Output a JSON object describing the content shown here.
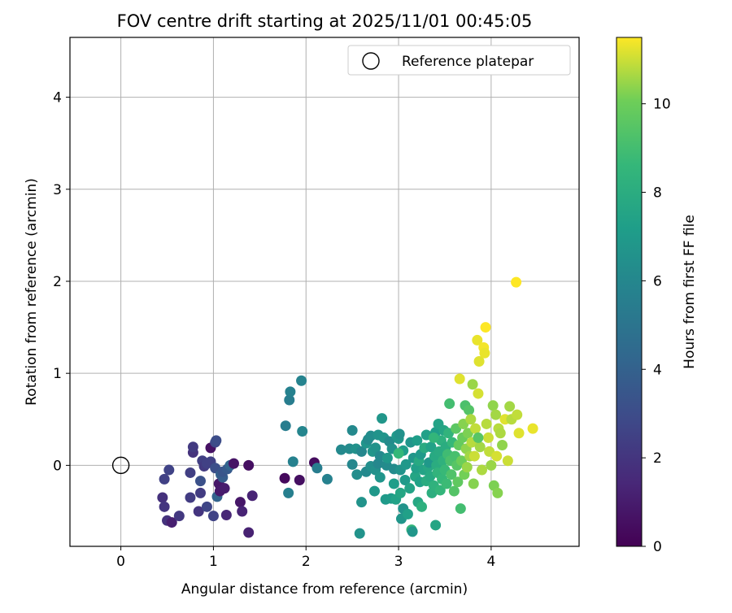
{
  "chart_data": {
    "type": "scatter",
    "title": "FOV centre drift starting at 2025/11/01 00:45:05",
    "xlabel": "Angular distance from reference (arcmin)",
    "ylabel": "Rotation from reference (arcmin)",
    "xlim": [
      -0.55,
      4.95
    ],
    "ylim": [
      -0.88,
      4.65
    ],
    "xticks": [
      0,
      1,
      2,
      3,
      4
    ],
    "yticks": [
      0,
      1,
      2,
      3,
      4
    ],
    "grid": true,
    "legend": {
      "placement": "top-right",
      "entries": [
        "Reference platepar"
      ]
    },
    "reference_point": {
      "x": 0,
      "y": 0
    },
    "colorbar": {
      "label": "Hours from first FF file",
      "colormap": "viridis",
      "range": [
        0,
        11.5
      ],
      "ticks": [
        0,
        2,
        4,
        6,
        8,
        10
      ]
    },
    "points": [
      {
        "x": 0.45,
        "y": -0.35,
        "t": 1.8
      },
      {
        "x": 0.47,
        "y": -0.15,
        "t": 2.5
      },
      {
        "x": 0.47,
        "y": -0.45,
        "t": 2.0
      },
      {
        "x": 0.5,
        "y": -0.6,
        "t": 1.9
      },
      {
        "x": 0.52,
        "y": -0.05,
        "t": 2.6
      },
      {
        "x": 0.55,
        "y": -0.62,
        "t": 1.1
      },
      {
        "x": 0.63,
        "y": -0.55,
        "t": 2.1
      },
      {
        "x": 0.75,
        "y": -0.35,
        "t": 2.3
      },
      {
        "x": 0.75,
        "y": -0.08,
        "t": 2.4
      },
      {
        "x": 0.78,
        "y": 0.14,
        "t": 1.9
      },
      {
        "x": 0.78,
        "y": 0.2,
        "t": 2.2
      },
      {
        "x": 0.84,
        "y": -0.5,
        "t": 2.0
      },
      {
        "x": 0.86,
        "y": -0.3,
        "t": 2.3
      },
      {
        "x": 0.86,
        "y": -0.17,
        "t": 3.2
      },
      {
        "x": 0.88,
        "y": 0.05,
        "t": 2.4
      },
      {
        "x": 0.9,
        "y": -0.01,
        "t": 2.2
      },
      {
        "x": 0.93,
        "y": 0.02,
        "t": 2.5
      },
      {
        "x": 0.93,
        "y": -0.45,
        "t": 2.7
      },
      {
        "x": 0.97,
        "y": 0.19,
        "t": 0.6
      },
      {
        "x": 0.97,
        "y": 0.04,
        "t": 2.5
      },
      {
        "x": 1.0,
        "y": -0.55,
        "t": 2.6
      },
      {
        "x": 1.02,
        "y": -0.03,
        "t": 3.1
      },
      {
        "x": 1.02,
        "y": 0.25,
        "t": 2.8
      },
      {
        "x": 1.03,
        "y": 0.27,
        "t": 3.0
      },
      {
        "x": 1.04,
        "y": -0.34,
        "t": 4.1
      },
      {
        "x": 1.06,
        "y": -0.2,
        "t": 0.8
      },
      {
        "x": 1.07,
        "y": -0.28,
        "t": 0.9
      },
      {
        "x": 1.08,
        "y": -0.1,
        "t": 4.0
      },
      {
        "x": 1.1,
        "y": -0.13,
        "t": 3.8
      },
      {
        "x": 1.1,
        "y": -0.07,
        "t": 3.4
      },
      {
        "x": 1.12,
        "y": -0.25,
        "t": 1.0
      },
      {
        "x": 1.14,
        "y": -0.54,
        "t": 1.4
      },
      {
        "x": 1.15,
        "y": -0.04,
        "t": 3.6
      },
      {
        "x": 1.18,
        "y": 0.0,
        "t": 4.2
      },
      {
        "x": 1.22,
        "y": 0.02,
        "t": 0.7
      },
      {
        "x": 1.29,
        "y": -0.4,
        "t": 0.8
      },
      {
        "x": 1.31,
        "y": -0.5,
        "t": 1.3
      },
      {
        "x": 1.38,
        "y": 0.0,
        "t": 0.5
      },
      {
        "x": 1.38,
        "y": -0.73,
        "t": 1.2
      },
      {
        "x": 1.42,
        "y": -0.33,
        "t": 1.3
      },
      {
        "x": 1.77,
        "y": -0.14,
        "t": 0.3
      },
      {
        "x": 1.78,
        "y": 0.43,
        "t": 5.5
      },
      {
        "x": 1.81,
        "y": -0.3,
        "t": 5.6
      },
      {
        "x": 1.82,
        "y": 0.71,
        "t": 5.5
      },
      {
        "x": 1.83,
        "y": 0.8,
        "t": 5.7
      },
      {
        "x": 1.86,
        "y": 0.04,
        "t": 5.7
      },
      {
        "x": 1.93,
        "y": -0.16,
        "t": 0.5
      },
      {
        "x": 1.95,
        "y": 0.92,
        "t": 5.8
      },
      {
        "x": 1.96,
        "y": 0.37,
        "t": 5.9
      },
      {
        "x": 2.09,
        "y": 0.03,
        "t": 0.4
      },
      {
        "x": 2.12,
        "y": -0.03,
        "t": 5.5
      },
      {
        "x": 2.23,
        "y": -0.15,
        "t": 5.7
      },
      {
        "x": 2.38,
        "y": 0.17,
        "t": 6.1
      },
      {
        "x": 2.47,
        "y": 0.18,
        "t": 6.2
      },
      {
        "x": 2.5,
        "y": 0.01,
        "t": 6.0
      },
      {
        "x": 2.5,
        "y": 0.38,
        "t": 6.1
      },
      {
        "x": 2.54,
        "y": 0.18,
        "t": 6.5
      },
      {
        "x": 2.55,
        "y": -0.1,
        "t": 6.3
      },
      {
        "x": 2.58,
        "y": -0.74,
        "t": 6.6
      },
      {
        "x": 2.6,
        "y": -0.4,
        "t": 6.6
      },
      {
        "x": 2.6,
        "y": 0.15,
        "t": 6.0
      },
      {
        "x": 2.65,
        "y": 0.24,
        "t": 6.7
      },
      {
        "x": 2.65,
        "y": -0.07,
        "t": 6.1
      },
      {
        "x": 2.67,
        "y": 0.28,
        "t": 6.2
      },
      {
        "x": 2.7,
        "y": 0.32,
        "t": 6.3
      },
      {
        "x": 2.7,
        "y": -0.01,
        "t": 6.4
      },
      {
        "x": 2.72,
        "y": 0.15,
        "t": 6.8
      },
      {
        "x": 2.74,
        "y": -0.28,
        "t": 6.9
      },
      {
        "x": 2.75,
        "y": 0.19,
        "t": 6.6
      },
      {
        "x": 2.75,
        "y": -0.05,
        "t": 6.5
      },
      {
        "x": 2.78,
        "y": 0.33,
        "t": 6.6
      },
      {
        "x": 2.78,
        "y": 0.02,
        "t": 6.0
      },
      {
        "x": 2.8,
        "y": -0.13,
        "t": 6.7
      },
      {
        "x": 2.8,
        "y": 0.1,
        "t": 6.1
      },
      {
        "x": 2.82,
        "y": 0.51,
        "t": 6.8
      },
      {
        "x": 2.84,
        "y": 0.3,
        "t": 6.7
      },
      {
        "x": 2.86,
        "y": -0.37,
        "t": 7.0
      },
      {
        "x": 2.87,
        "y": 0.0,
        "t": 6.2
      },
      {
        "x": 2.88,
        "y": 0.08,
        "t": 6.9
      },
      {
        "x": 2.9,
        "y": 0.26,
        "t": 6.2
      },
      {
        "x": 2.92,
        "y": -0.36,
        "t": 7.1
      },
      {
        "x": 2.93,
        "y": 0.18,
        "t": 6.5
      },
      {
        "x": 2.95,
        "y": -0.04,
        "t": 6.2
      },
      {
        "x": 2.95,
        "y": -0.2,
        "t": 7.2
      },
      {
        "x": 2.97,
        "y": -0.37,
        "t": 7.4
      },
      {
        "x": 2.98,
        "y": 0.32,
        "t": 7.0
      },
      {
        "x": 3.0,
        "y": 0.29,
        "t": 6.8
      },
      {
        "x": 3.01,
        "y": 0.34,
        "t": 6.5
      },
      {
        "x": 3.02,
        "y": -0.05,
        "t": 6.6
      },
      {
        "x": 3.02,
        "y": -0.3,
        "t": 7.6
      },
      {
        "x": 3.03,
        "y": -0.58,
        "t": 6.8
      },
      {
        "x": 3.05,
        "y": 0.16,
        "t": 7.2
      },
      {
        "x": 3.05,
        "y": -0.47,
        "t": 6.6
      },
      {
        "x": 3.07,
        "y": -0.16,
        "t": 7.0
      },
      {
        "x": 3.08,
        "y": 0.01,
        "t": 6.9
      },
      {
        "x": 3.1,
        "y": -0.53,
        "t": 7.3
      },
      {
        "x": 3.12,
        "y": -0.25,
        "t": 7.5
      },
      {
        "x": 3.13,
        "y": 0.25,
        "t": 6.7
      },
      {
        "x": 3.14,
        "y": -0.7,
        "t": 8.5
      },
      {
        "x": 3.15,
        "y": -0.72,
        "t": 6.8
      },
      {
        "x": 3.16,
        "y": 0.08,
        "t": 6.8
      },
      {
        "x": 3.18,
        "y": -0.12,
        "t": 7.6
      },
      {
        "x": 3.19,
        "y": -0.03,
        "t": 7.3
      },
      {
        "x": 3.2,
        "y": 0.27,
        "t": 7.2
      },
      {
        "x": 3.21,
        "y": -0.4,
        "t": 7.7
      },
      {
        "x": 3.22,
        "y": 0.05,
        "t": 7.8
      },
      {
        "x": 3.23,
        "y": -0.18,
        "t": 7.4
      },
      {
        "x": 3.24,
        "y": 0.12,
        "t": 7.0
      },
      {
        "x": 3.25,
        "y": -0.45,
        "t": 8.2
      },
      {
        "x": 3.27,
        "y": -0.05,
        "t": 7.5
      },
      {
        "x": 3.28,
        "y": 0.19,
        "t": 7.9
      },
      {
        "x": 3.3,
        "y": -0.17,
        "t": 8.0
      },
      {
        "x": 3.3,
        "y": 0.33,
        "t": 7.3
      },
      {
        "x": 3.32,
        "y": -0.02,
        "t": 7.7
      },
      {
        "x": 3.33,
        "y": 0.03,
        "t": 6.9
      },
      {
        "x": 3.34,
        "y": -0.12,
        "t": 7.8
      },
      {
        "x": 3.35,
        "y": 0.2,
        "t": 7.4
      },
      {
        "x": 3.36,
        "y": -0.3,
        "t": 8.1
      },
      {
        "x": 3.38,
        "y": -0.22,
        "t": 8.3
      },
      {
        "x": 3.39,
        "y": 0.1,
        "t": 7.8
      },
      {
        "x": 3.4,
        "y": 0.36,
        "t": 7.2
      },
      {
        "x": 3.4,
        "y": -0.65,
        "t": 7.6
      },
      {
        "x": 3.41,
        "y": 0.0,
        "t": 8.0
      },
      {
        "x": 3.42,
        "y": -0.08,
        "t": 8.4
      },
      {
        "x": 3.43,
        "y": 0.45,
        "t": 7.5
      },
      {
        "x": 3.44,
        "y": 0.15,
        "t": 7.9
      },
      {
        "x": 3.45,
        "y": -0.27,
        "t": 8.5
      },
      {
        "x": 3.46,
        "y": 0.27,
        "t": 8.2
      },
      {
        "x": 3.47,
        "y": -0.15,
        "t": 8.6
      },
      {
        "x": 3.48,
        "y": 0.05,
        "t": 8.3
      },
      {
        "x": 3.49,
        "y": 0.38,
        "t": 7.6
      },
      {
        "x": 3.5,
        "y": -0.05,
        "t": 8.7
      },
      {
        "x": 3.51,
        "y": 0.2,
        "t": 8.0
      },
      {
        "x": 3.52,
        "y": -0.2,
        "t": 8.8
      },
      {
        "x": 3.53,
        "y": 0.12,
        "t": 8.9
      },
      {
        "x": 3.54,
        "y": 0.35,
        "t": 8.4
      },
      {
        "x": 3.55,
        "y": 0.67,
        "t": 9.0
      },
      {
        "x": 3.56,
        "y": 0.05,
        "t": 9.2
      },
      {
        "x": 3.57,
        "y": -0.1,
        "t": 9.3
      },
      {
        "x": 3.58,
        "y": 0.25,
        "t": 8.6
      },
      {
        "x": 3.6,
        "y": -0.28,
        "t": 9.4
      },
      {
        "x": 3.61,
        "y": 0.1,
        "t": 9.1
      },
      {
        "x": 3.62,
        "y": 0.4,
        "t": 9.6
      },
      {
        "x": 3.63,
        "y": 0.0,
        "t": 9.5
      },
      {
        "x": 3.64,
        "y": -0.18,
        "t": 9.7
      },
      {
        "x": 3.65,
        "y": 0.22,
        "t": 9.8
      },
      {
        "x": 3.66,
        "y": 0.94,
        "t": 11.2
      },
      {
        "x": 3.67,
        "y": -0.47,
        "t": 9.0
      },
      {
        "x": 3.68,
        "y": 0.05,
        "t": 10.0
      },
      {
        "x": 3.69,
        "y": 0.3,
        "t": 9.9
      },
      {
        "x": 3.7,
        "y": 0.45,
        "t": 10.3
      },
      {
        "x": 3.71,
        "y": -0.1,
        "t": 10.1
      },
      {
        "x": 3.72,
        "y": 0.65,
        "t": 9.2
      },
      {
        "x": 3.73,
        "y": 0.18,
        "t": 10.4
      },
      {
        "x": 3.74,
        "y": -0.02,
        "t": 10.5
      },
      {
        "x": 3.75,
        "y": 0.35,
        "t": 10.2
      },
      {
        "x": 3.76,
        "y": 0.6,
        "t": 9.4
      },
      {
        "x": 3.77,
        "y": 0.1,
        "t": 10.6
      },
      {
        "x": 3.78,
        "y": 0.5,
        "t": 10.7
      },
      {
        "x": 3.79,
        "y": 0.25,
        "t": 10.8
      },
      {
        "x": 3.8,
        "y": 0.88,
        "t": 10.5
      },
      {
        "x": 3.81,
        "y": -0.2,
        "t": 10.3
      },
      {
        "x": 3.82,
        "y": 0.1,
        "t": 11.0
      },
      {
        "x": 3.83,
        "y": 0.4,
        "t": 10.9
      },
      {
        "x": 3.85,
        "y": 1.36,
        "t": 11.3
      },
      {
        "x": 3.86,
        "y": 0.78,
        "t": 11.1
      },
      {
        "x": 3.87,
        "y": 1.13,
        "t": 11.2
      },
      {
        "x": 3.88,
        "y": 0.2,
        "t": 10.6
      },
      {
        "x": 3.9,
        "y": -0.05,
        "t": 10.7
      },
      {
        "x": 3.92,
        "y": 1.28,
        "t": 11.4
      },
      {
        "x": 3.93,
        "y": 1.22,
        "t": 11.3
      },
      {
        "x": 3.94,
        "y": 1.5,
        "t": 11.5
      },
      {
        "x": 3.95,
        "y": 0.45,
        "t": 10.8
      },
      {
        "x": 3.97,
        "y": 0.3,
        "t": 11.0
      },
      {
        "x": 3.98,
        "y": 0.15,
        "t": 10.9
      },
      {
        "x": 4.0,
        "y": 0.0,
        "t": 10.5
      },
      {
        "x": 4.02,
        "y": 0.65,
        "t": 10.4
      },
      {
        "x": 4.03,
        "y": -0.22,
        "t": 10.2
      },
      {
        "x": 4.05,
        "y": 0.55,
        "t": 10.6
      },
      {
        "x": 4.06,
        "y": 0.1,
        "t": 11.1
      },
      {
        "x": 4.07,
        "y": -0.3,
        "t": 10.3
      },
      {
        "x": 4.08,
        "y": 0.4,
        "t": 10.8
      },
      {
        "x": 4.1,
        "y": 0.35,
        "t": 10.7
      },
      {
        "x": 4.12,
        "y": 0.22,
        "t": 10.4
      },
      {
        "x": 4.15,
        "y": 0.5,
        "t": 11.2
      },
      {
        "x": 4.18,
        "y": 0.05,
        "t": 11.0
      },
      {
        "x": 4.2,
        "y": 0.64,
        "t": 10.6
      },
      {
        "x": 4.22,
        "y": 0.5,
        "t": 10.8
      },
      {
        "x": 4.28,
        "y": 0.55,
        "t": 10.9
      },
      {
        "x": 4.3,
        "y": 0.35,
        "t": 11.2
      },
      {
        "x": 4.45,
        "y": 0.4,
        "t": 11.3
      },
      {
        "x": 4.27,
        "y": 1.99,
        "t": 11.5
      },
      {
        "x": 3.0,
        "y": 0.13,
        "t": 8.6
      },
      {
        "x": 3.38,
        "y": 0.3,
        "t": 8.5
      },
      {
        "x": 3.86,
        "y": 0.3,
        "t": 9.5
      }
    ]
  }
}
